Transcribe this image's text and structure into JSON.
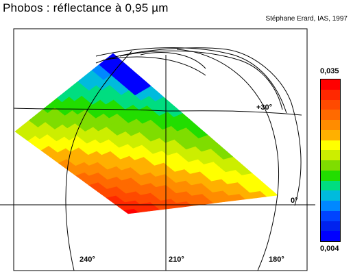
{
  "title": "Phobos : réflectance à 0,95  µm",
  "credit": "Stéphane Erard, IAS, 1997",
  "map": {
    "lat_labels": {
      "p30": "+30°",
      "eq": "0°"
    },
    "lon_labels": {
      "l240": "240°",
      "l210": "210°",
      "l180": "180°"
    }
  },
  "colorbar": {
    "max_label": "0,035",
    "min_label": "0,004",
    "min": 0.004,
    "max": 0.035,
    "colors": [
      "#ff0000",
      "#ff2800",
      "#ff4a00",
      "#ff6a00",
      "#ff8c00",
      "#ffb000",
      "#ffff00",
      "#ccee00",
      "#7fdd00",
      "#22dd00",
      "#00dd80",
      "#00bbdd",
      "#0088ff",
      "#0044ff",
      "#0022ee",
      "#0000ff"
    ]
  }
}
